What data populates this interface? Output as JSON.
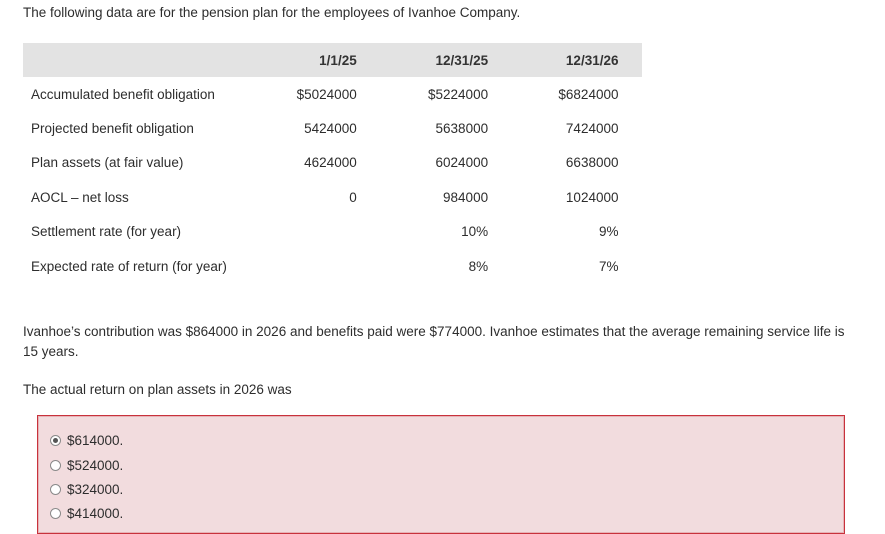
{
  "intro": "The following data are for the pension plan for the employees of Ivanhoe Company.",
  "table": {
    "headers": [
      "1/1/25",
      "12/31/25",
      "12/31/26"
    ],
    "rows": [
      {
        "label": "Accumulated benefit obligation",
        "v1": "$5024000",
        "v2": "$5224000",
        "v3": "$6824000"
      },
      {
        "label": "Projected benefit obligation",
        "v1": "5424000",
        "v2": "5638000",
        "v3": "7424000"
      },
      {
        "label": "Plan assets (at fair value)",
        "v1": "4624000",
        "v2": "6024000",
        "v3": "6638000"
      },
      {
        "label": "AOCL – net loss",
        "v1": "0",
        "v2": "984000",
        "v3": "1024000"
      },
      {
        "label": "Settlement rate (for year)",
        "v1": "",
        "v2": "10%",
        "v3": "9%"
      },
      {
        "label": "Expected rate of return (for year)",
        "v1": "",
        "v2": "8%",
        "v3": "7%"
      }
    ]
  },
  "paragraph": "Ivanhoe’s contribution was $864000 in 2026 and benefits paid were $774000. Ivanhoe estimates that the average remaining service life is 15 years.",
  "question": "The actual return on plan assets in 2026 was",
  "options": [
    {
      "label": "$614000.",
      "selected": true
    },
    {
      "label": "$524000.",
      "selected": false
    },
    {
      "label": "$324000.",
      "selected": false
    },
    {
      "label": "$414000.",
      "selected": false
    }
  ],
  "colors": {
    "header_bg": "#e3e3e3",
    "answer_bg": "#f2dcde",
    "answer_border": "#c8323c"
  }
}
